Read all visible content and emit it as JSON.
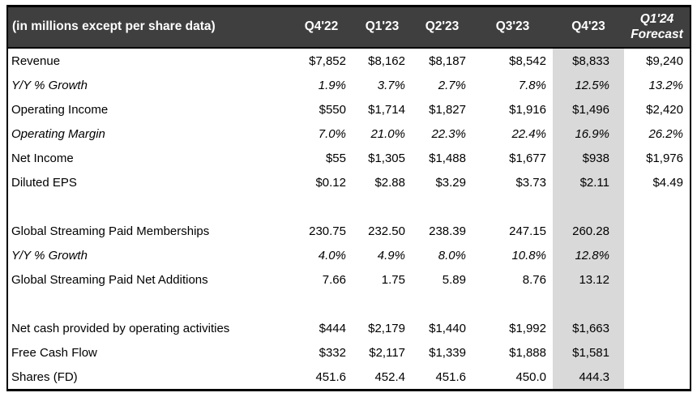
{
  "colors": {
    "header_bg": "#3f3f3f",
    "header_text": "#ffffff",
    "highlight_bg": "#d9d9d9",
    "border": "#000000"
  },
  "chart_data": {
    "type": "table",
    "corner_label": "(in millions except per share data)",
    "columns": [
      "Q4'22",
      "Q1'23",
      "Q2'23",
      "Q3'23",
      "Q4'23",
      "Q1'24\nForecast"
    ],
    "highlight_column": "Q4'23",
    "rows": [
      {
        "label": "Revenue",
        "italic": false,
        "blank": false,
        "values": [
          "$7,852",
          "$8,162",
          "$8,187",
          "$8,542",
          "$8,833",
          "$9,240"
        ]
      },
      {
        "label": "Y/Y % Growth",
        "italic": true,
        "blank": false,
        "values": [
          "1.9%",
          "3.7%",
          "2.7%",
          "7.8%",
          "12.5%",
          "13.2%"
        ]
      },
      {
        "label": "Operating Income",
        "italic": false,
        "blank": false,
        "values": [
          "$550",
          "$1,714",
          "$1,827",
          "$1,916",
          "$1,496",
          "$2,420"
        ]
      },
      {
        "label": "Operating Margin",
        "italic": true,
        "blank": false,
        "values": [
          "7.0%",
          "21.0%",
          "22.3%",
          "22.4%",
          "16.9%",
          "26.2%"
        ]
      },
      {
        "label": "Net Income",
        "italic": false,
        "blank": false,
        "values": [
          "$55",
          "$1,305",
          "$1,488",
          "$1,677",
          "$938",
          "$1,976"
        ]
      },
      {
        "label": "Diluted EPS",
        "italic": false,
        "blank": false,
        "values": [
          "$0.12",
          "$2.88",
          "$3.29",
          "$3.73",
          "$2.11",
          "$4.49"
        ]
      },
      {
        "label": "",
        "italic": false,
        "blank": true,
        "values": [
          "",
          "",
          "",
          "",
          "",
          ""
        ]
      },
      {
        "label": "Global Streaming Paid Memberships",
        "italic": false,
        "blank": false,
        "values": [
          "230.75",
          "232.50",
          "238.39",
          "247.15",
          "260.28",
          ""
        ]
      },
      {
        "label": "Y/Y % Growth",
        "italic": true,
        "blank": false,
        "values": [
          "4.0%",
          "4.9%",
          "8.0%",
          "10.8%",
          "12.8%",
          ""
        ]
      },
      {
        "label": "Global Streaming Paid Net Additions",
        "italic": false,
        "blank": false,
        "values": [
          "7.66",
          "1.75",
          "5.89",
          "8.76",
          "13.12",
          ""
        ]
      },
      {
        "label": "",
        "italic": false,
        "blank": true,
        "values": [
          "",
          "",
          "",
          "",
          "",
          ""
        ]
      },
      {
        "label": "Net cash provided by operating activities",
        "italic": false,
        "blank": false,
        "values": [
          "$444",
          "$2,179",
          "$1,440",
          "$1,992",
          "$1,663",
          ""
        ]
      },
      {
        "label": "Free Cash Flow",
        "italic": false,
        "blank": false,
        "values": [
          "$332",
          "$2,117",
          "$1,339",
          "$1,888",
          "$1,581",
          ""
        ]
      },
      {
        "label": "Shares (FD)",
        "italic": false,
        "blank": false,
        "values": [
          "451.6",
          "452.4",
          "451.6",
          "450.0",
          "444.3",
          ""
        ]
      }
    ]
  }
}
